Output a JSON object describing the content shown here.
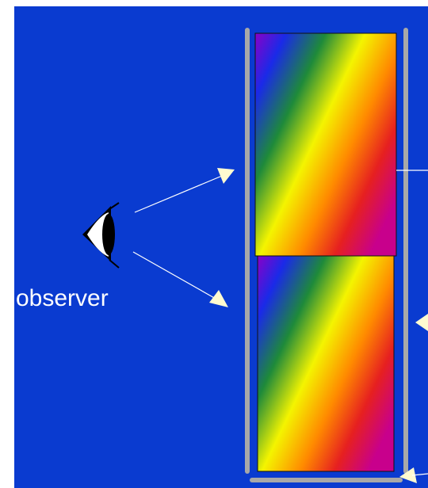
{
  "diagram": {
    "labels": {
      "observer": "observer"
    }
  }
}
